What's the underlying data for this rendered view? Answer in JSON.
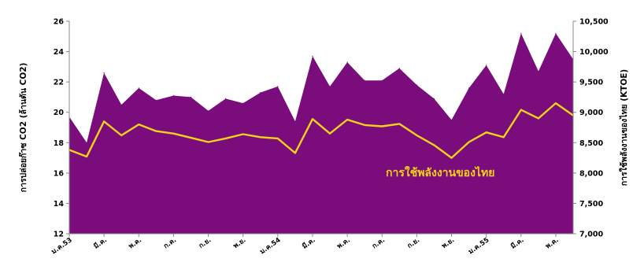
{
  "chart_data": {
    "type": "area",
    "title": "",
    "xlabel": "",
    "ylabel_left": "การปล่อยก๊าซ CO2 (ล้านตัน CO2)",
    "ylabel_right": "การใช้พลังงานของไทย (KTOE)",
    "grid": false,
    "x_tick_labels": [
      "ม.ค.53",
      "มี.ค.",
      "พ.ค.",
      "ก.ค.",
      "ก.ย.",
      "พ.ย.",
      "ม.ค.54",
      "มี.ค.",
      "พ.ค.",
      "ก.ค.",
      "ก.ย.",
      "พ.ย.",
      "ม.ค.55",
      "มี.ค.",
      "พ.ค."
    ],
    "y_left": {
      "min": 12,
      "max": 26,
      "ticks": [
        "12",
        "14",
        "16",
        "18",
        "20",
        "22",
        "24",
        "26"
      ]
    },
    "y_right": {
      "min": 7000,
      "max": 10500,
      "ticks": [
        "7,000",
        "7,500",
        "8,000",
        "8,500",
        "9,000",
        "9,500",
        "10,000",
        "10,500"
      ]
    },
    "series": [
      {
        "name": "การปล่อยก๊าซ CO2",
        "label_main": "การปล่อยก๊าซ CO",
        "label_sub": "2",
        "axis": "left",
        "style": "area",
        "color": "#7B0C7B",
        "values": [
          19.7,
          18.0,
          22.6,
          20.5,
          21.6,
          20.8,
          21.1,
          21.0,
          20.1,
          20.9,
          20.6,
          21.3,
          21.7,
          19.4,
          23.7,
          21.7,
          23.3,
          22.1,
          22.1,
          22.9,
          21.8,
          20.9,
          19.5,
          21.6,
          23.1,
          21.2,
          25.2,
          22.7,
          25.2,
          23.5
        ]
      },
      {
        "name": "การใช้พลังงานของไทย",
        "axis": "right",
        "style": "line",
        "color": "#F2D21A",
        "values": [
          8380,
          8270,
          8850,
          8620,
          8800,
          8690,
          8650,
          8580,
          8510,
          8570,
          8640,
          8590,
          8570,
          8330,
          8890,
          8650,
          8880,
          8790,
          8770,
          8810,
          8620,
          8460,
          8250,
          8510,
          8670,
          8590,
          9040,
          8900,
          9150,
          8950
        ]
      }
    ]
  }
}
